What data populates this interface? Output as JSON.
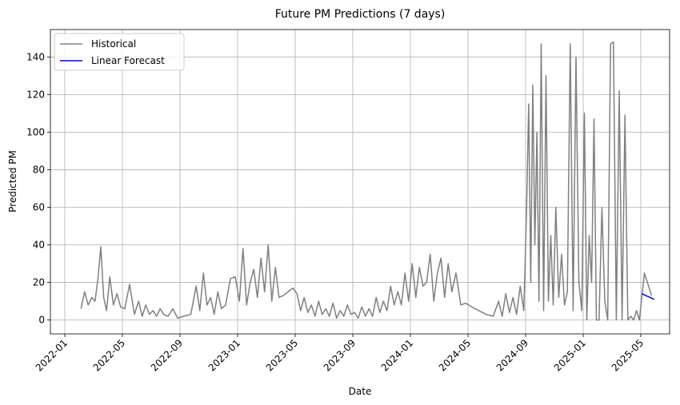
{
  "chart_data": {
    "type": "line",
    "title": "Future PM Predictions (7 days)",
    "x_label": "Date",
    "y_label": "Predicted PM",
    "xlim": [
      "2021-12",
      "2025-07"
    ],
    "xticks": [
      "2022-01",
      "2022-05",
      "2022-09",
      "2023-01",
      "2023-05",
      "2023-09",
      "2024-01",
      "2024-05",
      "2024-09",
      "2025-01",
      "2025-05"
    ],
    "ylim": [
      -7.4,
      154.6
    ],
    "yticks": [
      0,
      20,
      40,
      60,
      80,
      100,
      120,
      140
    ],
    "grid": true,
    "legend": "upper left",
    "series": [
      {
        "name": "Historical",
        "color": "#808080",
        "x": [
          "2022-02",
          "2022-02",
          "2022-02",
          "2022-02",
          "2022-03",
          "2022-03",
          "2022-03",
          "2022-03",
          "2022-03",
          "2022-04",
          "2022-04",
          "2022-04",
          "2022-04",
          "2022-05",
          "2022-05",
          "2022-05",
          "2022-06",
          "2022-06",
          "2022-06",
          "2022-06",
          "2022-07",
          "2022-07",
          "2022-07",
          "2022-07",
          "2022-08",
          "2022-08",
          "2022-08",
          "2022-09",
          "2022-09",
          "2022-10",
          "2022-10",
          "2022-10",
          "2022-10",
          "2022-11",
          "2022-11",
          "2022-11",
          "2022-11",
          "2022-12",
          "2022-12",
          "2022-12",
          "2023-01",
          "2023-01",
          "2023-01",
          "2023-01",
          "2023-02",
          "2023-02",
          "2023-02",
          "2023-02",
          "2023-03",
          "2023-03",
          "2023-03",
          "2023-03",
          "2023-04",
          "2023-04",
          "2023-04",
          "2023-05",
          "2023-05",
          "2023-05",
          "2023-05",
          "2023-06",
          "2023-06",
          "2023-06",
          "2023-06",
          "2023-07",
          "2023-07",
          "2023-07",
          "2023-07",
          "2023-08",
          "2023-08",
          "2023-08",
          "2023-08",
          "2023-09",
          "2023-09",
          "2023-09",
          "2023-09",
          "2023-10",
          "2023-10",
          "2023-10",
          "2023-10",
          "2023-11",
          "2023-11",
          "2023-11",
          "2023-11",
          "2023-12",
          "2023-12",
          "2023-12",
          "2023-12",
          "2024-01",
          "2024-01",
          "2024-01",
          "2024-01",
          "2024-02",
          "2024-02",
          "2024-02",
          "2024-02",
          "2024-03",
          "2024-03",
          "2024-03",
          "2024-03",
          "2024-04",
          "2024-04",
          "2024-04",
          "2024-05",
          "2024-05",
          "2024-06",
          "2024-06",
          "2024-07",
          "2024-07",
          "2024-07",
          "2024-07",
          "2024-08",
          "2024-08",
          "2024-08",
          "2024-08",
          "2024-09",
          "2024-09",
          "2024-09",
          "2024-09",
          "2024-09",
          "2024-09",
          "2024-09",
          "2024-10",
          "2024-10",
          "2024-10",
          "2024-10",
          "2024-10",
          "2024-10",
          "2024-11",
          "2024-11",
          "2024-11",
          "2024-11",
          "2024-11",
          "2024-12",
          "2024-12",
          "2024-12",
          "2024-12",
          "2024-12",
          "2025-01",
          "2025-01",
          "2025-01",
          "2025-01",
          "2025-01",
          "2025-01",
          "2025-02",
          "2025-02",
          "2025-02",
          "2025-02",
          "2025-02",
          "2025-03",
          "2025-03",
          "2025-03",
          "2025-03",
          "2025-03",
          "2025-04",
          "2025-04",
          "2025-04",
          "2025-04",
          "2025-04",
          "2025-05",
          "2025-05"
        ],
        "values": [
          6,
          15,
          8,
          12,
          10,
          22,
          39,
          12,
          5,
          23,
          8,
          14,
          7,
          6,
          19,
          3,
          10,
          2,
          8,
          3,
          5,
          2,
          6,
          3,
          2,
          6,
          1,
          2,
          3,
          18,
          5,
          25,
          8,
          12,
          3,
          15,
          6,
          8,
          22,
          23,
          10,
          38,
          8,
          20,
          27,
          12,
          33,
          15,
          40,
          10,
          28,
          12,
          13,
          15,
          17,
          14,
          5,
          12,
          4,
          8,
          2,
          10,
          3,
          6,
          2,
          9,
          1,
          5,
          2,
          8,
          3,
          4,
          1,
          7,
          2,
          6,
          2,
          12,
          4,
          10,
          5,
          18,
          8,
          15,
          8,
          25,
          10,
          30,
          12,
          28,
          18,
          20,
          35,
          10,
          25,
          33,
          12,
          30,
          15,
          25,
          8,
          9,
          7,
          5,
          3,
          2,
          10,
          2,
          14,
          4,
          12,
          3,
          18,
          5,
          60,
          115,
          20,
          125,
          40,
          100,
          10,
          147,
          5,
          130,
          10,
          45,
          8,
          60,
          12,
          35,
          8,
          15,
          147,
          5,
          140,
          20,
          5,
          110,
          0,
          45,
          20,
          107,
          0,
          0,
          60,
          10,
          0,
          147,
          148,
          0,
          122,
          0,
          109,
          0,
          2,
          0,
          5,
          0,
          25,
          13
        ]
      },
      {
        "name": "Linear Forecast",
        "color": "#0000ff",
        "x": [
          "2025-05",
          "2025-05",
          "2025-05",
          "2025-05",
          "2025-05",
          "2025-05",
          "2025-05"
        ],
        "values": [
          14,
          13.5,
          13,
          12.5,
          12,
          11.5,
          11
        ]
      }
    ]
  }
}
